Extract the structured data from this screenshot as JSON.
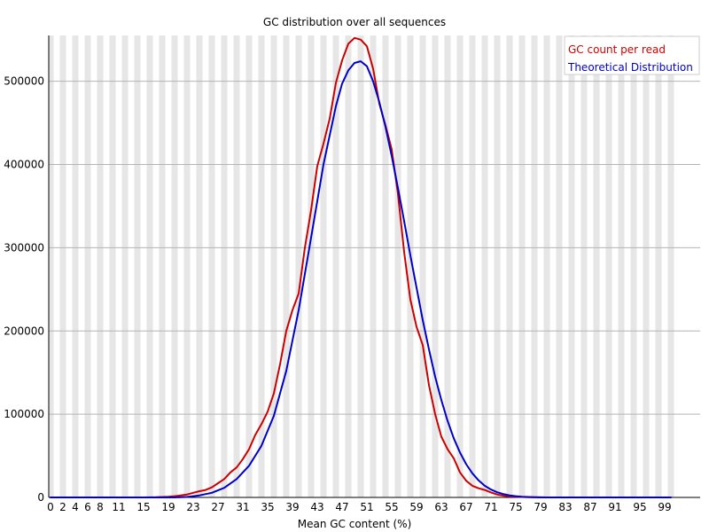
{
  "chart_data": {
    "type": "line",
    "title": "GC distribution over all sequences",
    "xlabel": "Mean GC content (%)",
    "ylabel": "",
    "xlim": [
      0,
      100
    ],
    "ylim": [
      0,
      555000
    ],
    "x_tick_labels": [
      "0",
      "2",
      "4",
      "6",
      "8",
      "11",
      "15",
      "19",
      "23",
      "27",
      "31",
      "35",
      "39",
      "43",
      "47",
      "51",
      "55",
      "59",
      "63",
      "67",
      "71",
      "75",
      "79",
      "83",
      "87",
      "91",
      "95",
      "99"
    ],
    "y_ticks": [
      0,
      100000,
      200000,
      300000,
      400000,
      500000
    ],
    "y_tick_labels": [
      "0",
      "100000",
      "200000",
      "300000",
      "400000",
      "500000"
    ],
    "grid": "horizontal",
    "legend_position": "top-right",
    "background_bands": "alternating vertical bands",
    "series": [
      {
        "name": "GC count per read",
        "color": "#cc0000",
        "points": [
          [
            0,
            0
          ],
          [
            10,
            0
          ],
          [
            15,
            0
          ],
          [
            17,
            200
          ],
          [
            19,
            800
          ],
          [
            20,
            1500
          ],
          [
            21,
            2500
          ],
          [
            22,
            3500
          ],
          [
            23,
            5500
          ],
          [
            24,
            7500
          ],
          [
            25,
            9000
          ],
          [
            26,
            12000
          ],
          [
            27,
            17000
          ],
          [
            28,
            22000
          ],
          [
            29,
            30000
          ],
          [
            30,
            36000
          ],
          [
            31,
            46000
          ],
          [
            32,
            58000
          ],
          [
            33,
            75000
          ],
          [
            34,
            88000
          ],
          [
            35,
            103000
          ],
          [
            36,
            125000
          ],
          [
            37,
            160000
          ],
          [
            38,
            200000
          ],
          [
            39,
            225000
          ],
          [
            40,
            245000
          ],
          [
            41,
            300000
          ],
          [
            42,
            345000
          ],
          [
            43,
            398000
          ],
          [
            44,
            425000
          ],
          [
            45,
            455000
          ],
          [
            46,
            498000
          ],
          [
            47,
            525000
          ],
          [
            48,
            545000
          ],
          [
            49,
            552000
          ],
          [
            50,
            550000
          ],
          [
            51,
            542000
          ],
          [
            52,
            515000
          ],
          [
            53,
            473000
          ],
          [
            54,
            447000
          ],
          [
            55,
            418000
          ],
          [
            56,
            365000
          ],
          [
            57,
            295000
          ],
          [
            58,
            238000
          ],
          [
            59,
            205000
          ],
          [
            60,
            183000
          ],
          [
            61,
            135000
          ],
          [
            62,
            100000
          ],
          [
            63,
            73000
          ],
          [
            64,
            58000
          ],
          [
            65,
            47000
          ],
          [
            66,
            30000
          ],
          [
            67,
            20000
          ],
          [
            68,
            14000
          ],
          [
            69,
            11000
          ],
          [
            70,
            9000
          ],
          [
            71,
            6000
          ],
          [
            72,
            3500
          ],
          [
            73,
            2000
          ],
          [
            74,
            1200
          ],
          [
            75,
            800
          ],
          [
            76,
            500
          ],
          [
            77,
            200
          ],
          [
            78,
            100
          ],
          [
            80,
            0
          ],
          [
            100,
            0
          ]
        ]
      },
      {
        "name": "Theoretical Distribution",
        "color": "#0000cc",
        "points": [
          [
            0,
            0
          ],
          [
            20,
            0
          ],
          [
            22,
            500
          ],
          [
            24,
            2500
          ],
          [
            26,
            5500
          ],
          [
            28,
            11500
          ],
          [
            30,
            22000
          ],
          [
            32,
            38000
          ],
          [
            34,
            62000
          ],
          [
            36,
            98000
          ],
          [
            38,
            152000
          ],
          [
            40,
            225000
          ],
          [
            42,
            312000
          ],
          [
            44,
            400000
          ],
          [
            46,
            470000
          ],
          [
            47,
            497000
          ],
          [
            48,
            513000
          ],
          [
            49,
            522000
          ],
          [
            50,
            524000
          ],
          [
            51,
            518000
          ],
          [
            52,
            500000
          ],
          [
            53,
            475000
          ],
          [
            54,
            445000
          ],
          [
            55,
            410000
          ],
          [
            56,
            372000
          ],
          [
            57,
            332000
          ],
          [
            58,
            291000
          ],
          [
            59,
            252000
          ],
          [
            60,
            213000
          ],
          [
            61,
            178000
          ],
          [
            62,
            145000
          ],
          [
            63,
            117000
          ],
          [
            64,
            92000
          ],
          [
            65,
            71000
          ],
          [
            66,
            54000
          ],
          [
            67,
            40000
          ],
          [
            68,
            29000
          ],
          [
            69,
            20500
          ],
          [
            70,
            14000
          ],
          [
            71,
            9500
          ],
          [
            72,
            6200
          ],
          [
            73,
            4000
          ],
          [
            74,
            2500
          ],
          [
            75,
            1500
          ],
          [
            76,
            900
          ],
          [
            77,
            500
          ],
          [
            78,
            300
          ],
          [
            80,
            0
          ],
          [
            100,
            0
          ]
        ]
      }
    ]
  }
}
